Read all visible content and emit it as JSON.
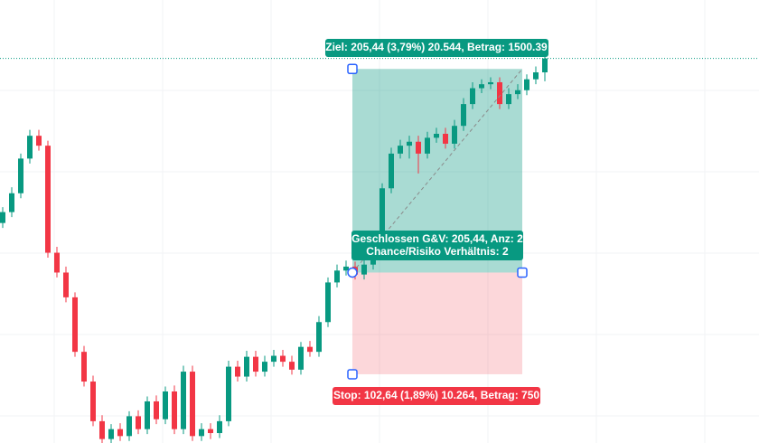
{
  "chart_data": {
    "type": "candlestick",
    "ylim": [
      5248,
      5695
    ],
    "up_color": "#089981",
    "down_color": "#f23645",
    "open": [
      5470,
      5481,
      5500,
      5535,
      5558,
      5548,
      5440,
      5420,
      5395,
      5340,
      5310,
      5270,
      5252,
      5262,
      5255,
      5275,
      5262,
      5290,
      5272,
      5300,
      5262,
      5320,
      5255,
      5262,
      5258,
      5270,
      5325,
      5315,
      5335,
      5320,
      5330,
      5336,
      5330,
      5322,
      5345,
      5340,
      5370,
      5410,
      5422,
      5426,
      5418,
      5428,
      5440,
      5505,
      5540,
      5548,
      5552,
      5540,
      5556,
      5560,
      5550,
      5568,
      5590,
      5606,
      5610,
      5612,
      5590,
      5600,
      5604,
      5615,
      5622
    ],
    "high": [
      5486,
      5506,
      5540,
      5564,
      5564,
      5553,
      5446,
      5426,
      5400,
      5346,
      5316,
      5276,
      5267,
      5268,
      5280,
      5281,
      5295,
      5296,
      5305,
      5306,
      5326,
      5326,
      5268,
      5268,
      5276,
      5331,
      5331,
      5341,
      5341,
      5336,
      5342,
      5342,
      5336,
      5350,
      5351,
      5376,
      5415,
      5428,
      5432,
      5431,
      5434,
      5446,
      5510,
      5546,
      5554,
      5558,
      5558,
      5562,
      5566,
      5566,
      5574,
      5596,
      5612,
      5615,
      5617,
      5617,
      5606,
      5610,
      5620,
      5628,
      5648
    ],
    "low": [
      5465,
      5476,
      5495,
      5530,
      5543,
      5435,
      5415,
      5390,
      5335,
      5305,
      5265,
      5248,
      5248,
      5250,
      5250,
      5257,
      5257,
      5267,
      5267,
      5257,
      5257,
      5250,
      5250,
      5252,
      5253,
      5265,
      5310,
      5310,
      5315,
      5315,
      5325,
      5325,
      5317,
      5317,
      5335,
      5335,
      5365,
      5405,
      5417,
      5413,
      5413,
      5423,
      5435,
      5500,
      5535,
      5535,
      5520,
      5535,
      5551,
      5545,
      5545,
      5563,
      5585,
      5601,
      5605,
      5585,
      5585,
      5595,
      5599,
      5610,
      5613
    ],
    "close": [
      5481,
      5500,
      5535,
      5558,
      5548,
      5440,
      5420,
      5395,
      5340,
      5310,
      5270,
      5252,
      5262,
      5255,
      5275,
      5262,
      5290,
      5272,
      5300,
      5262,
      5320,
      5255,
      5262,
      5258,
      5270,
      5325,
      5315,
      5335,
      5320,
      5330,
      5336,
      5330,
      5322,
      5345,
      5340,
      5370,
      5410,
      5422,
      5426,
      5418,
      5428,
      5440,
      5505,
      5540,
      5548,
      5552,
      5540,
      5556,
      5560,
      5550,
      5568,
      5590,
      5606,
      5610,
      5612,
      5590,
      5600,
      5604,
      5615,
      5622,
      5636
    ],
    "position": {
      "entry": 5420,
      "target": 5625.44,
      "stop": 5317.36
    },
    "annotations": {
      "target_label": "Ziel: 205,44 (3,79%) 20.544, Betrag: 1500.39",
      "closed_label": "Geschlossen G&V: 205,44, Anz: 2",
      "ratio_label": "Chance/Risiko Verhältnis: 2",
      "stop_label": "Stop: 102,64 (1,89%) 10.264, Betrag: 750"
    }
  }
}
